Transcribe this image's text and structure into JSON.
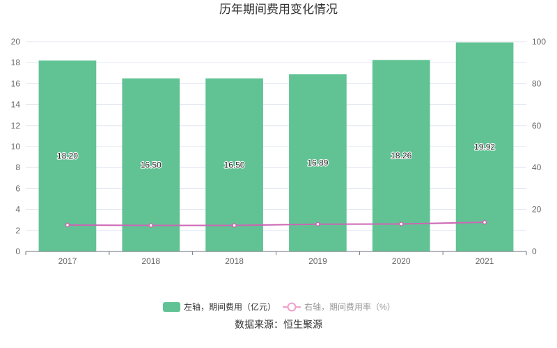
{
  "chart_data": {
    "type": "bar",
    "title": "历年期间费用变化情况",
    "categories": [
      "2017",
      "2018",
      "2018",
      "2019",
      "2020",
      "2021"
    ],
    "series": [
      {
        "name": "左轴，期间费用（亿元）",
        "type": "bar",
        "axis": "left",
        "color": "#61c394",
        "values": [
          18.2,
          16.5,
          16.5,
          16.89,
          18.26,
          19.92
        ],
        "labels": [
          "18.20",
          "16.50",
          "16.50",
          "16.89",
          "18.26",
          "19.92"
        ]
      },
      {
        "name": "右轴，期间费用率（%）",
        "type": "line",
        "axis": "right",
        "color": "#cc66b4",
        "values": [
          12.6,
          12.4,
          12.4,
          13.0,
          13.1,
          13.9
        ]
      }
    ],
    "y_left": {
      "min": 0,
      "max": 20,
      "ticks": [
        0,
        2,
        4,
        6,
        8,
        10,
        12,
        14,
        16,
        18,
        20
      ]
    },
    "y_right": {
      "min": 0,
      "max": 100,
      "ticks": [
        0,
        20,
        40,
        60,
        80,
        100
      ]
    },
    "grid": true,
    "legend_position": "bottom-center"
  },
  "source": "数据来源：恒生聚源"
}
